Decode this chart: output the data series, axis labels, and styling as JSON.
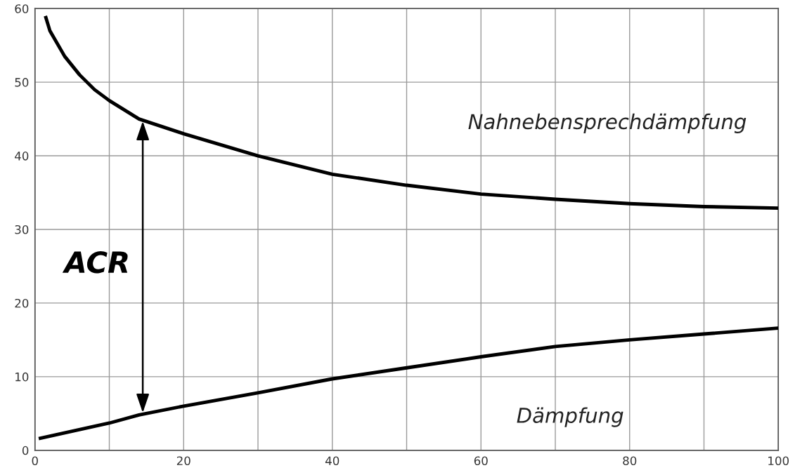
{
  "chart_data": {
    "type": "line",
    "x": [
      1.4,
      2,
      4,
      6,
      8,
      10,
      14,
      20,
      30,
      40,
      50,
      60,
      70,
      80,
      90,
      100
    ],
    "series": [
      {
        "name": "Nahnebensprechdämpfung",
        "color": "#000000",
        "values": [
          59,
          57,
          53.5,
          51,
          49,
          47.5,
          45,
          43,
          40,
          37.5,
          36,
          34.8,
          34.1,
          33.5,
          33.1,
          32.9
        ]
      },
      {
        "name": "Dämpfung",
        "color": "#000000",
        "x": [
          0.5,
          10,
          14,
          20,
          30,
          40,
          50,
          60,
          70,
          80,
          90,
          100
        ],
        "values": [
          1.6,
          3.7,
          4.8,
          6,
          7.8,
          9.7,
          11.2,
          12.7,
          14.1,
          15,
          15.8,
          16.6
        ]
      }
    ],
    "annotations": [
      "ACR"
    ],
    "xlim": [
      0,
      100
    ],
    "ylim": [
      0,
      60
    ],
    "xticks": [
      0,
      {
        "value": 10,
        "label": null
      },
      20,
      {
        "value": 30,
        "label": null
      },
      40,
      {
        "value": 50,
        "label": null
      },
      60,
      {
        "value": 70,
        "label": null
      },
      80,
      {
        "value": 90,
        "label": null
      },
      100
    ],
    "yticks": [
      0,
      10,
      20,
      30,
      40,
      50,
      60
    ],
    "grid": true,
    "legend": false,
    "marker": "none",
    "line_style": "solid"
  }
}
